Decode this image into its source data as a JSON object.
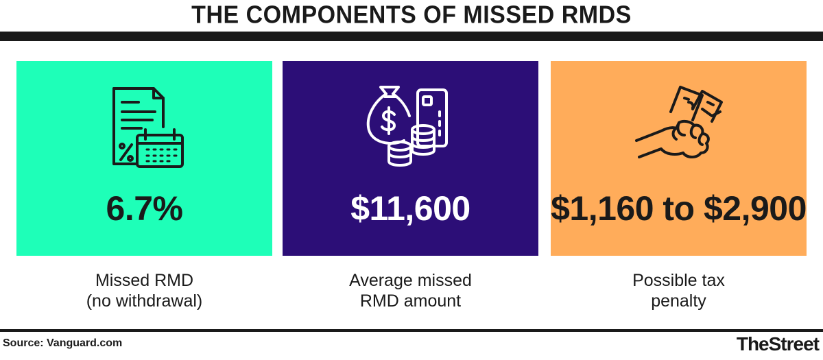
{
  "title": "THE COMPONENTS OF MISSED RMDS",
  "colors": {
    "panel_1": "#1effb8",
    "panel_2": "#2c0e77",
    "panel_3": "#ffac5a",
    "ink": "#1a1a1a"
  },
  "panels": [
    {
      "icon": "document-calendar-percent-icon",
      "value": "6.7%",
      "caption_lines": [
        "Missed RMD",
        "(no withdrawal)"
      ]
    },
    {
      "icon": "money-bag-coins-card-icon",
      "value": "$11,600",
      "caption_lines": [
        "Average missed",
        "RMD amount"
      ]
    },
    {
      "icon": "hand-holding-cash-icon",
      "value": "$1,160 to $2,900",
      "caption_lines": [
        "Possible tax",
        "penalty"
      ]
    }
  ],
  "footer": {
    "source": "Source: Vanguard.com",
    "brand": "TheStreet"
  }
}
